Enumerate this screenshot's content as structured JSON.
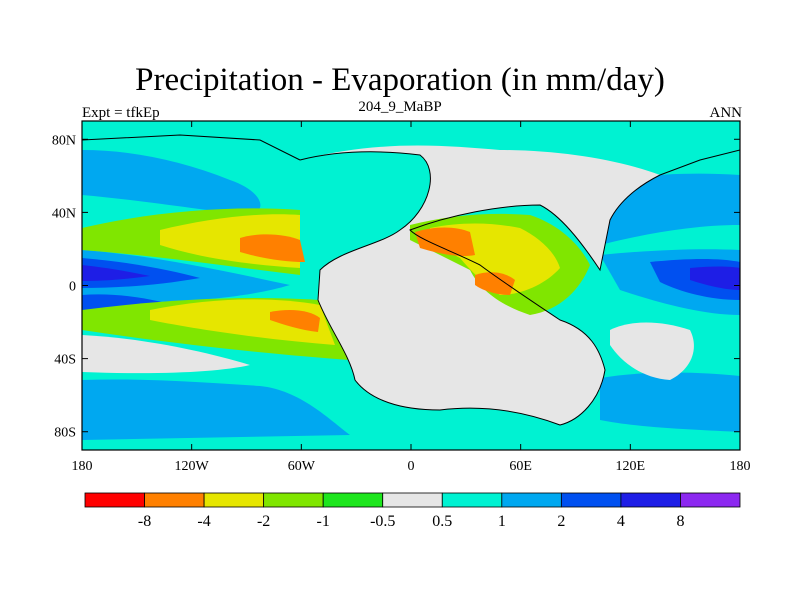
{
  "title": "Precipitation - Evaporation (in mm/day)",
  "subtitle": "204_9_MaBP",
  "left_label": "Expt = tfkEp",
  "right_label": "ANN",
  "map": {
    "projection": "cylindrical equidistant",
    "lon_range": [
      -180,
      180
    ],
    "lat_range": [
      -90,
      90
    ],
    "x_tick_labels": [
      "180",
      "120W",
      "60W",
      "0",
      "60E",
      "120E",
      "180"
    ],
    "y_tick_labels": [
      "80N",
      "40N",
      "0",
      "40S",
      "80S"
    ],
    "background_color": "#e6e6e6"
  },
  "colorbar": {
    "levels": [
      "-8",
      "-4",
      "-2",
      "-1",
      "-0.5",
      "0.5",
      "1",
      "2",
      "4",
      "8"
    ],
    "colors": [
      "#ff0000",
      "#ff8000",
      "#e6e600",
      "#80e600",
      "#1ee61e",
      "#e6e6e6",
      "#00f2d2",
      "#00a8f0",
      "#0050f0",
      "#1e1ee6",
      "#8c28f0"
    ]
  }
}
